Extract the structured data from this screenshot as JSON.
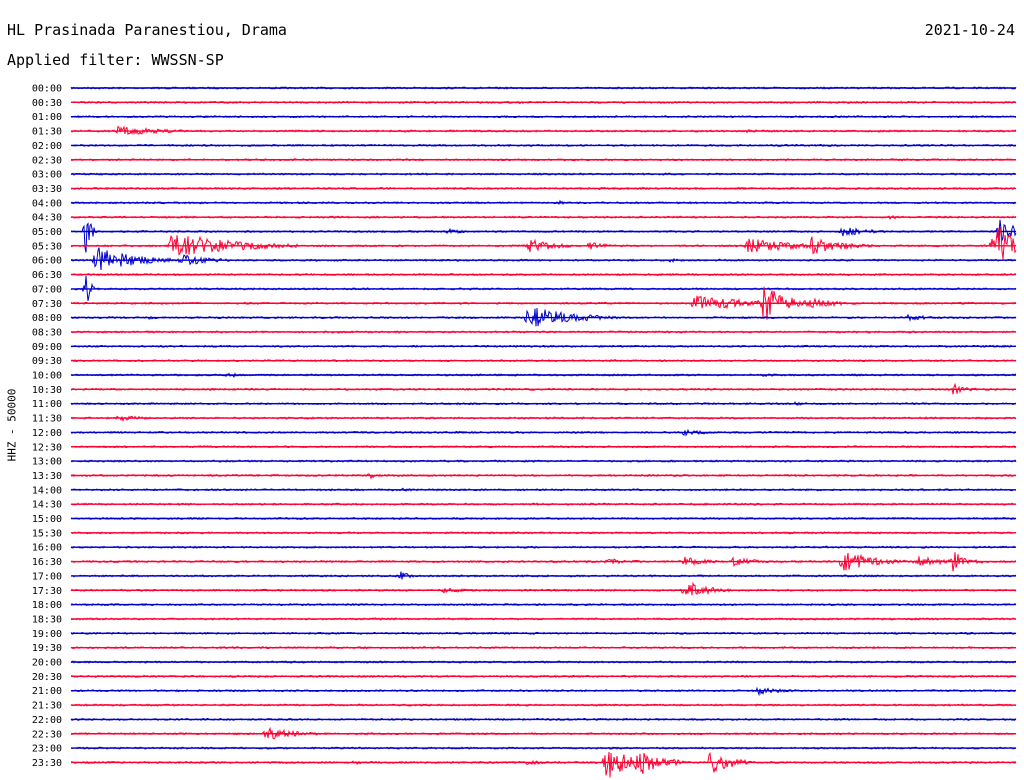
{
  "header": {
    "station": "HL Prasinada Paranestiou, Drama",
    "date": "2021-10-24",
    "filter_label": "Applied filter: WWSSN-SP"
  },
  "chart_data": {
    "type": "line",
    "subtype": "helicorder",
    "ylabel": "HHZ - 50000",
    "row_minutes": 30,
    "colors": [
      "#0000cc",
      "#ff0033"
    ],
    "rows": [
      {
        "label": "00:00",
        "events": []
      },
      {
        "label": "00:30",
        "events": []
      },
      {
        "label": "01:00",
        "events": []
      },
      {
        "label": "01:30",
        "events": [
          {
            "t": 1.5,
            "amp": 5,
            "dur": 3
          },
          {
            "t": 10.5,
            "amp": 2,
            "dur": 1
          },
          {
            "t": 21.5,
            "amp": 2,
            "dur": 1
          }
        ]
      },
      {
        "label": "02:00",
        "events": []
      },
      {
        "label": "02:30",
        "events": []
      },
      {
        "label": "03:00",
        "events": []
      },
      {
        "label": "03:30",
        "events": []
      },
      {
        "label": "04:00",
        "events": [
          {
            "t": 15.5,
            "amp": 2,
            "dur": 1
          }
        ]
      },
      {
        "label": "04:30",
        "events": [
          {
            "t": 26,
            "amp": 2,
            "dur": 1
          }
        ]
      },
      {
        "label": "05:00",
        "events": [
          {
            "t": 0.5,
            "amp": 28,
            "dur": 0.3
          },
          {
            "t": 12,
            "amp": 3,
            "dur": 1
          },
          {
            "t": 24.5,
            "amp": 5,
            "dur": 2
          },
          {
            "t": 29.5,
            "amp": 14,
            "dur": 1
          }
        ]
      },
      {
        "label": "05:30",
        "events": [
          {
            "t": 3.2,
            "amp": 14,
            "dur": 4
          },
          {
            "t": 14.5,
            "amp": 7,
            "dur": 2
          },
          {
            "t": 16.5,
            "amp": 5,
            "dur": 1
          },
          {
            "t": 21.5,
            "amp": 8,
            "dur": 3
          },
          {
            "t": 23.5,
            "amp": 10,
            "dur": 2
          },
          {
            "t": 29.3,
            "amp": 24,
            "dur": 2
          }
        ]
      },
      {
        "label": "06:00",
        "events": [
          {
            "t": 0.8,
            "amp": 14,
            "dur": 2.5
          },
          {
            "t": 3.5,
            "amp": 6,
            "dur": 2
          },
          {
            "t": 19,
            "amp": 2,
            "dur": 1
          }
        ]
      },
      {
        "label": "06:30",
        "events": []
      },
      {
        "label": "07:00",
        "events": [
          {
            "t": 0.5,
            "amp": 16,
            "dur": 0.3
          }
        ]
      },
      {
        "label": "07:30",
        "events": [
          {
            "t": 19.8,
            "amp": 8,
            "dur": 4
          },
          {
            "t": 22,
            "amp": 20,
            "dur": 1.5
          },
          {
            "t": 23.5,
            "amp": 5,
            "dur": 2
          }
        ]
      },
      {
        "label": "08:00",
        "events": [
          {
            "t": 2.5,
            "amp": 2,
            "dur": 1
          },
          {
            "t": 14.5,
            "amp": 12,
            "dur": 3
          },
          {
            "t": 26.5,
            "amp": 3,
            "dur": 2
          }
        ]
      },
      {
        "label": "08:30",
        "events": []
      },
      {
        "label": "09:00",
        "events": []
      },
      {
        "label": "09:30",
        "events": []
      },
      {
        "label": "10:00",
        "events": [
          {
            "t": 5,
            "amp": 3,
            "dur": 1
          },
          {
            "t": 22,
            "amp": 2,
            "dur": 1
          }
        ]
      },
      {
        "label": "10:30",
        "events": [
          {
            "t": 28,
            "amp": 6,
            "dur": 1
          }
        ]
      },
      {
        "label": "11:00",
        "events": [
          {
            "t": 23,
            "amp": 2,
            "dur": 1
          }
        ]
      },
      {
        "label": "11:30",
        "events": [
          {
            "t": 1.5,
            "amp": 3,
            "dur": 2
          }
        ]
      },
      {
        "label": "12:00",
        "events": [
          {
            "t": 19.5,
            "amp": 4,
            "dur": 1.5
          }
        ]
      },
      {
        "label": "12:30",
        "events": []
      },
      {
        "label": "13:00",
        "events": []
      },
      {
        "label": "13:30",
        "events": [
          {
            "t": 9.5,
            "amp": 3,
            "dur": 1
          }
        ]
      },
      {
        "label": "14:00",
        "events": [
          {
            "t": 10.5,
            "amp": 2,
            "dur": 1
          }
        ]
      },
      {
        "label": "14:30",
        "events": [
          {
            "t": 14.5,
            "amp": 2,
            "dur": 1
          }
        ]
      },
      {
        "label": "15:00",
        "events": []
      },
      {
        "label": "15:30",
        "events": []
      },
      {
        "label": "16:00",
        "events": []
      },
      {
        "label": "16:30",
        "events": [
          {
            "t": 17,
            "amp": 3,
            "dur": 2
          },
          {
            "t": 19.5,
            "amp": 5,
            "dur": 1.5
          },
          {
            "t": 21,
            "amp": 5,
            "dur": 1.5
          },
          {
            "t": 24.5,
            "amp": 12,
            "dur": 2
          },
          {
            "t": 26.8,
            "amp": 7,
            "dur": 1.5
          },
          {
            "t": 28,
            "amp": 12,
            "dur": 1
          }
        ]
      },
      {
        "label": "17:00",
        "events": [
          {
            "t": 10.5,
            "amp": 6,
            "dur": 0.5
          }
        ]
      },
      {
        "label": "17:30",
        "events": [
          {
            "t": 11.8,
            "amp": 3,
            "dur": 2
          },
          {
            "t": 19.5,
            "amp": 10,
            "dur": 1.5
          }
        ]
      },
      {
        "label": "18:00",
        "events": []
      },
      {
        "label": "18:30",
        "events": []
      },
      {
        "label": "19:00",
        "events": []
      },
      {
        "label": "19:30",
        "events": []
      },
      {
        "label": "20:00",
        "events": []
      },
      {
        "label": "20:30",
        "events": []
      },
      {
        "label": "21:00",
        "events": [
          {
            "t": 21.8,
            "amp": 4,
            "dur": 2
          }
        ]
      },
      {
        "label": "21:30",
        "events": []
      },
      {
        "label": "22:00",
        "events": []
      },
      {
        "label": "22:30",
        "events": [
          {
            "t": 6.2,
            "amp": 7,
            "dur": 2
          }
        ]
      },
      {
        "label": "23:00",
        "events": []
      },
      {
        "label": "23:30",
        "events": [
          {
            "t": 9,
            "amp": 2,
            "dur": 1
          },
          {
            "t": 14.5,
            "amp": 3,
            "dur": 1
          },
          {
            "t": 17,
            "amp": 18,
            "dur": 1.5
          },
          {
            "t": 18,
            "amp": 16,
            "dur": 1.5
          },
          {
            "t": 20.3,
            "amp": 12,
            "dur": 1.5
          },
          {
            "t": 21,
            "amp": 4,
            "dur": 1
          }
        ]
      }
    ]
  }
}
